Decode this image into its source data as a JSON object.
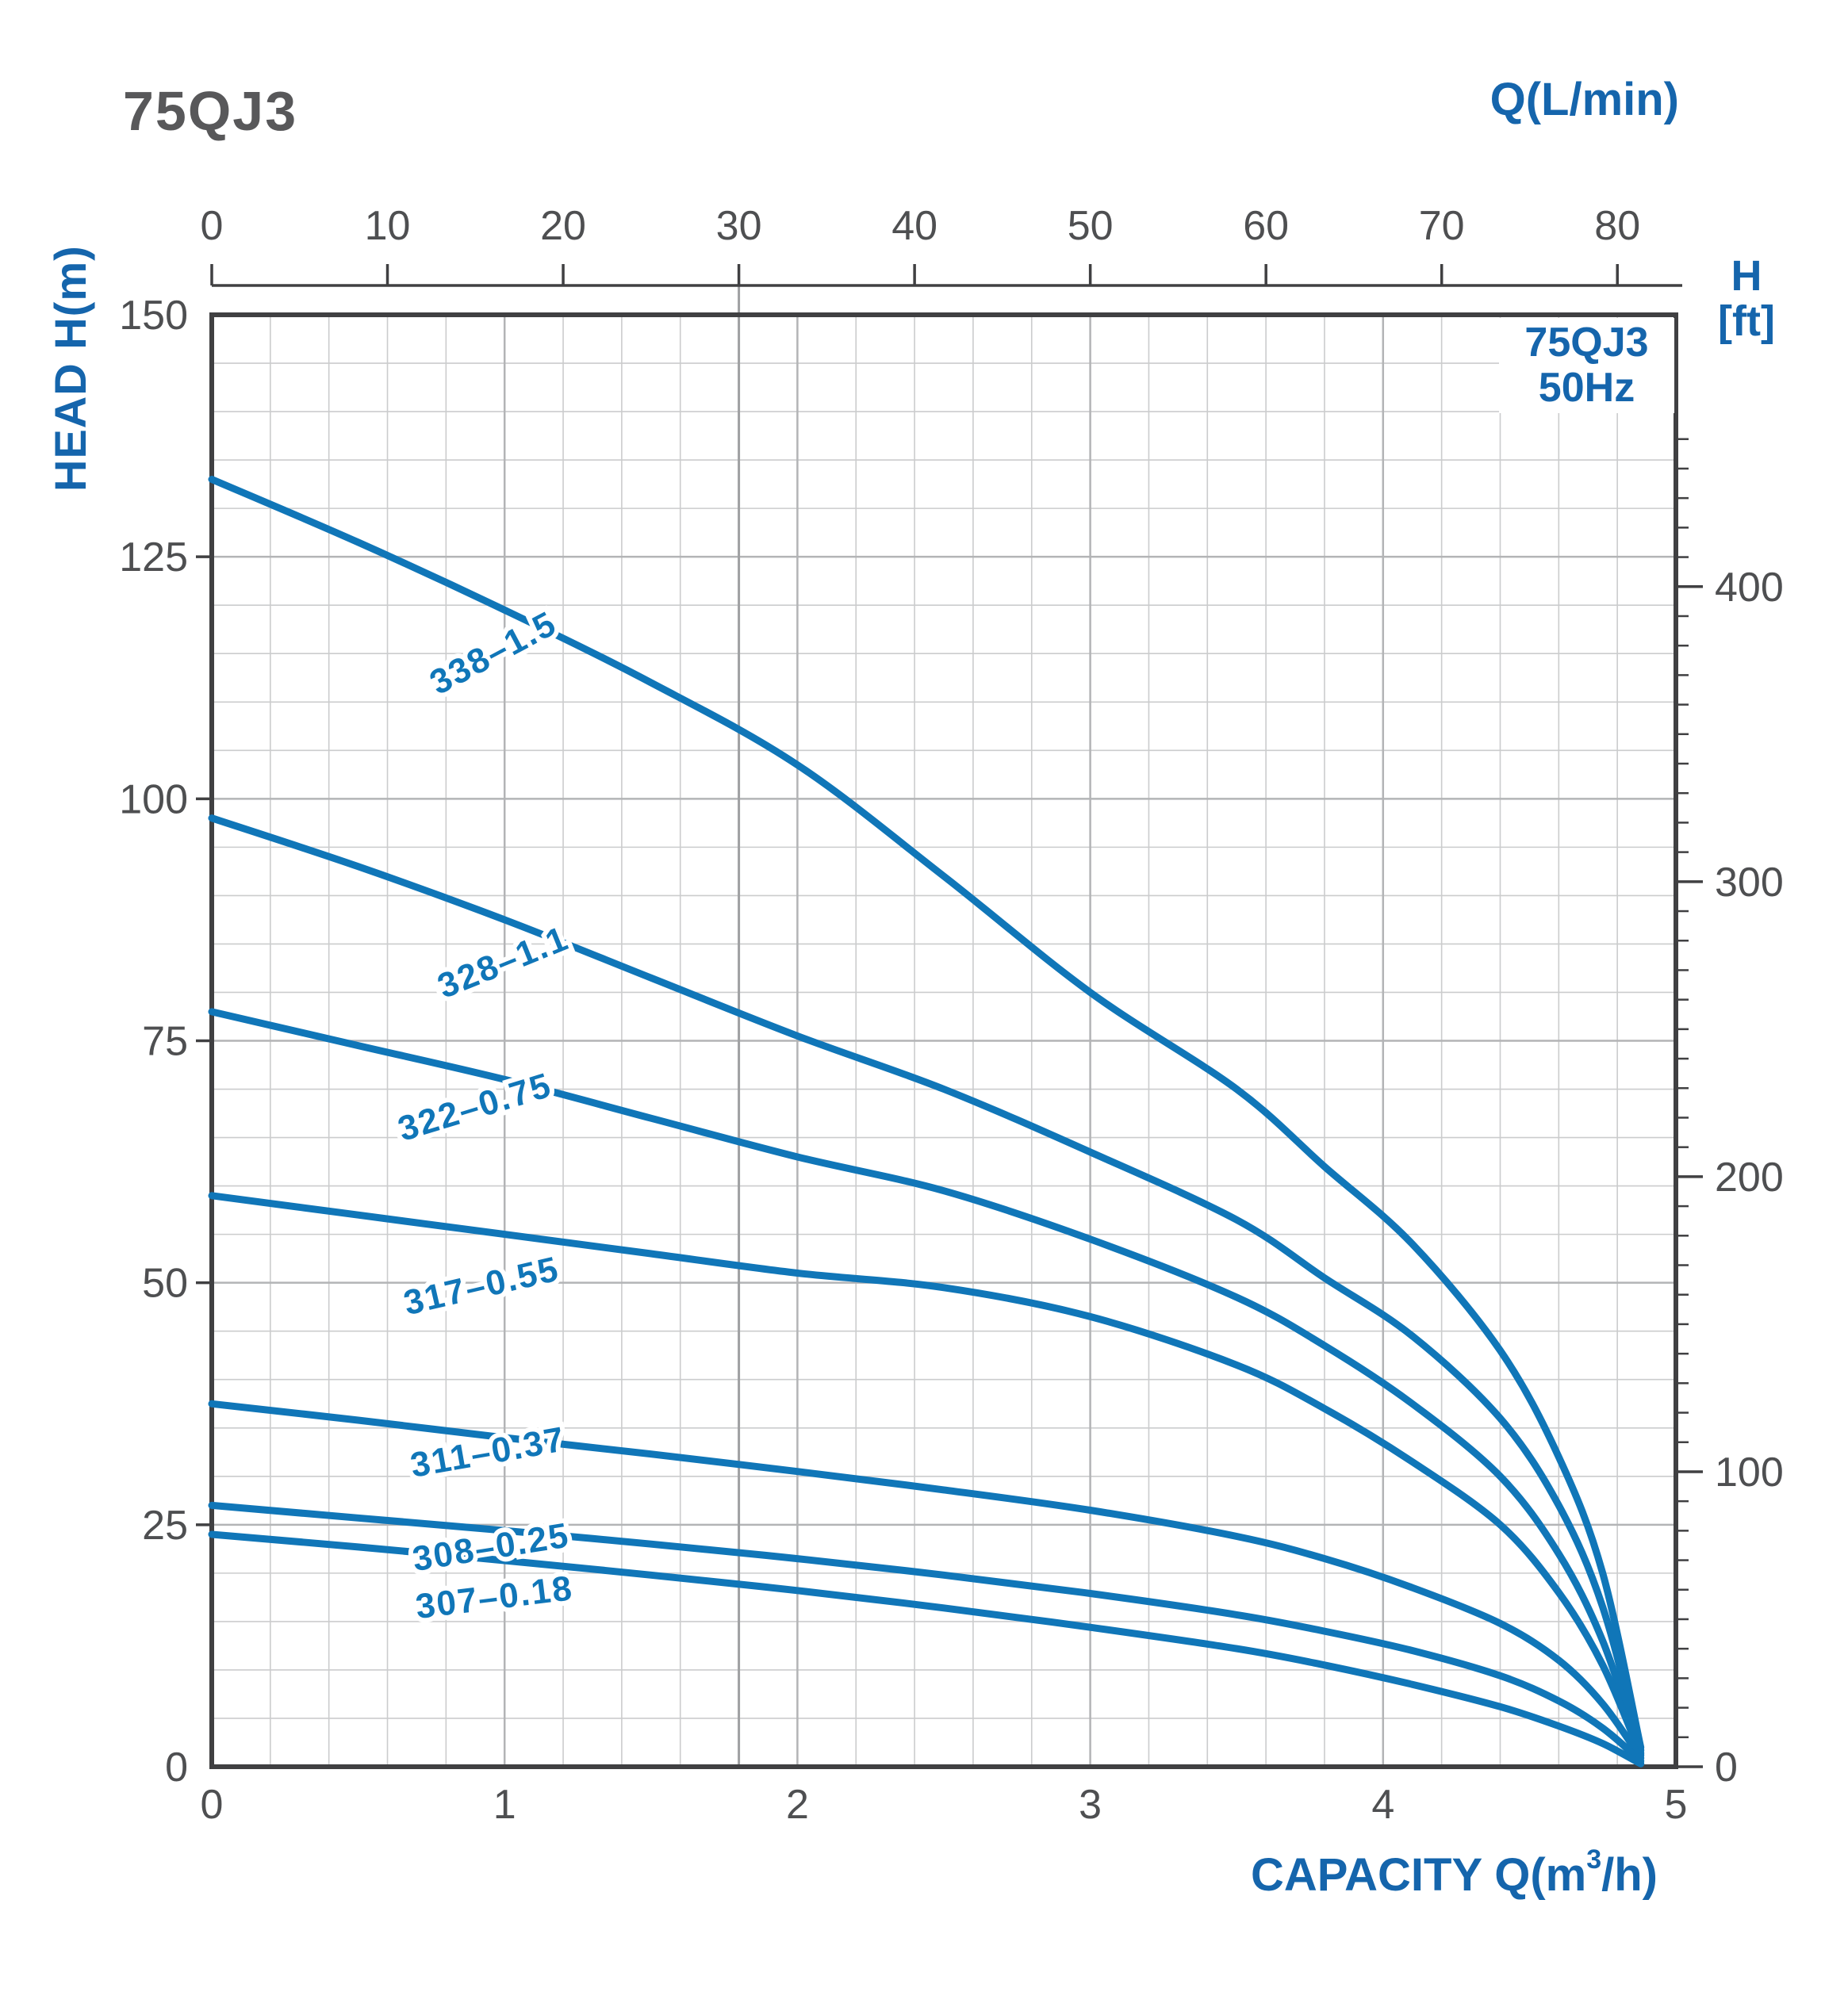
{
  "title": "75QJ3",
  "legend": {
    "line1": "75QJ3",
    "line2": "50Hz"
  },
  "colors": {
    "curve_blue": "#1076b8",
    "label_blue": "#1565ac",
    "tick_gray": "#4e4f51",
    "border_gray": "#404042",
    "grid_minor": "#cbcccd",
    "grid_major": "#b3b4b6",
    "reference_line": "#9fa0a2",
    "title_gray": "#58585a"
  },
  "chart_data": {
    "type": "line",
    "title": "75QJ3",
    "legend_lines": [
      "75QJ3",
      "50Hz"
    ],
    "legend_position": "top-right",
    "grid": true,
    "xlabel": "CAPACITY Q(m³/h)",
    "xlabel_parts": {
      "prefix": "CAPACITY Q(m",
      "sup": "3",
      "suffix": "/h)"
    },
    "x2label": "Q(L/min)",
    "ylabel": "HEAD H(m)",
    "y2label_line1": "H",
    "y2label_line2": "[ft]",
    "xlim": [
      0,
      5
    ],
    "ylim": [
      0,
      150
    ],
    "x2lim": [
      0,
      83.33
    ],
    "x_ticks": [
      0,
      1,
      2,
      3,
      4,
      5
    ],
    "x2_ticks": [
      0,
      10,
      20,
      30,
      40,
      50,
      60,
      70,
      80
    ],
    "y_ticks": [
      0,
      25,
      50,
      75,
      100,
      125,
      150
    ],
    "y2_ticks": [
      0,
      100,
      200,
      300,
      400
    ],
    "y2_minor_step_ft": 10,
    "x_minor_step": 0.2,
    "y_minor_step": 5,
    "ft_to_m": 0.3048,
    "reference_line_x2": 30,
    "series": [
      {
        "name": "338-1.5",
        "label": "338–1.5",
        "label_at": {
          "q": 0.98,
          "h": 114,
          "angle": -28
        },
        "points": [
          [
            0,
            133
          ],
          [
            0.5,
            126.5
          ],
          [
            1,
            119.5
          ],
          [
            1.5,
            112
          ],
          [
            2,
            103.5
          ],
          [
            2.5,
            92
          ],
          [
            3,
            80
          ],
          [
            3.5,
            70
          ],
          [
            3.8,
            62
          ],
          [
            4.1,
            54
          ],
          [
            4.4,
            43
          ],
          [
            4.6,
            32
          ],
          [
            4.75,
            20
          ],
          [
            4.88,
            2
          ]
        ]
      },
      {
        "name": "328-1.1",
        "label": "328–1.1",
        "label_at": {
          "q": 1.01,
          "h": 82,
          "angle": -22
        },
        "points": [
          [
            0,
            98
          ],
          [
            0.5,
            93
          ],
          [
            1,
            87.5
          ],
          [
            1.5,
            81.5
          ],
          [
            2,
            75.5
          ],
          [
            2.5,
            70
          ],
          [
            3,
            63.5
          ],
          [
            3.5,
            56.5
          ],
          [
            3.8,
            50.5
          ],
          [
            4.1,
            44.5
          ],
          [
            4.4,
            36
          ],
          [
            4.6,
            27
          ],
          [
            4.75,
            16.5
          ],
          [
            4.88,
            1.7
          ]
        ]
      },
      {
        "name": "322-0.75",
        "label": "322–0.75",
        "label_at": {
          "q": 0.91,
          "h": 67,
          "angle": -17
        },
        "points": [
          [
            0,
            78
          ],
          [
            0.5,
            74.5
          ],
          [
            1,
            71
          ],
          [
            1.5,
            67
          ],
          [
            2,
            63
          ],
          [
            2.5,
            59.5
          ],
          [
            3,
            54.5
          ],
          [
            3.5,
            48.5
          ],
          [
            3.8,
            43.5
          ],
          [
            4.1,
            37.5
          ],
          [
            4.4,
            30
          ],
          [
            4.6,
            22
          ],
          [
            4.75,
            13
          ],
          [
            4.88,
            1.4
          ]
        ]
      },
      {
        "name": "317-0.55",
        "label": "317–0.55",
        "label_at": {
          "q": 0.93,
          "h": 48.5,
          "angle": -13
        },
        "points": [
          [
            0,
            59
          ],
          [
            0.5,
            57
          ],
          [
            1,
            55
          ],
          [
            1.5,
            53
          ],
          [
            2,
            51
          ],
          [
            2.5,
            49.5
          ],
          [
            3,
            46.5
          ],
          [
            3.5,
            41.5
          ],
          [
            3.8,
            37
          ],
          [
            4.1,
            31.5
          ],
          [
            4.4,
            25
          ],
          [
            4.6,
            18
          ],
          [
            4.75,
            10.5
          ],
          [
            4.88,
            1.2
          ]
        ]
      },
      {
        "name": "311-0.37",
        "label": "311–0.37",
        "label_at": {
          "q": 0.95,
          "h": 31.3,
          "angle": -10
        },
        "points": [
          [
            0,
            37.5
          ],
          [
            0.5,
            35.8
          ],
          [
            1,
            34
          ],
          [
            1.5,
            32.3
          ],
          [
            2,
            30.5
          ],
          [
            2.5,
            28.6
          ],
          [
            3,
            26.5
          ],
          [
            3.5,
            23.8
          ],
          [
            3.8,
            21.5
          ],
          [
            4.1,
            18.5
          ],
          [
            4.4,
            14.8
          ],
          [
            4.6,
            11
          ],
          [
            4.75,
            6.5
          ],
          [
            4.88,
            0.9
          ]
        ]
      },
      {
        "name": "308-0.25",
        "label": "308–0.25",
        "label_at": {
          "q": 0.96,
          "h": 21.5,
          "angle": -9
        },
        "points": [
          [
            0,
            27
          ],
          [
            0.5,
            25.7
          ],
          [
            1,
            24.4
          ],
          [
            1.5,
            23
          ],
          [
            2,
            21.5
          ],
          [
            2.5,
            19.8
          ],
          [
            3,
            17.9
          ],
          [
            3.5,
            15.7
          ],
          [
            3.8,
            14
          ],
          [
            4.1,
            12
          ],
          [
            4.4,
            9.4
          ],
          [
            4.6,
            6.8
          ],
          [
            4.75,
            4
          ],
          [
            4.88,
            0.6
          ]
        ]
      },
      {
        "name": "307-0.18",
        "label": "307–0.18",
        "label_at": {
          "q": 0.97,
          "h": 16.3,
          "angle": -7
        },
        "points": [
          [
            0,
            24
          ],
          [
            0.5,
            22.7
          ],
          [
            1,
            21.3
          ],
          [
            1.5,
            19.8
          ],
          [
            2,
            18.2
          ],
          [
            2.5,
            16.4
          ],
          [
            3,
            14.4
          ],
          [
            3.5,
            12.2
          ],
          [
            3.8,
            10.5
          ],
          [
            4.1,
            8.5
          ],
          [
            4.4,
            6.2
          ],
          [
            4.6,
            4.2
          ],
          [
            4.75,
            2.4
          ],
          [
            4.88,
            0.3
          ]
        ]
      }
    ]
  }
}
